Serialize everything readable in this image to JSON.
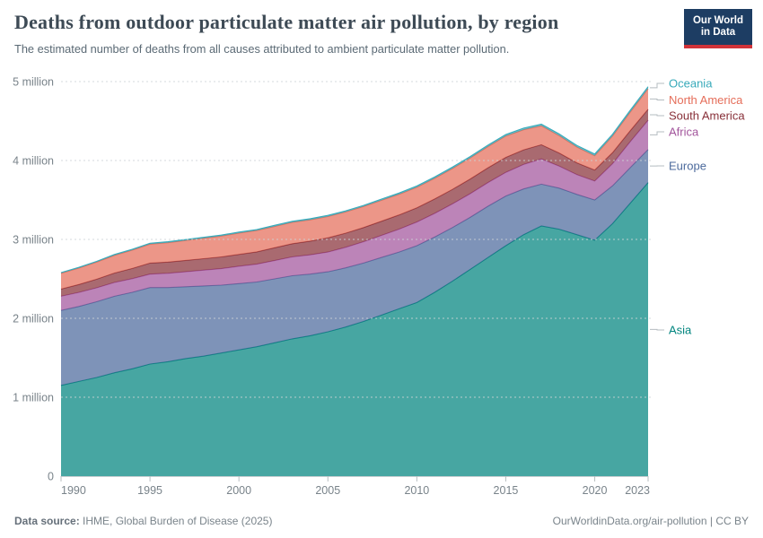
{
  "header": {
    "title": "Deaths from outdoor particulate matter air pollution, by region",
    "subtitle": "The estimated number of deaths from all causes attributed to ambient particulate matter pollution.",
    "logo_line1": "Our World",
    "logo_line2": "in Data",
    "logo_bg": "#1d3d63",
    "logo_accent": "#d13239"
  },
  "footer": {
    "source_label": "Data source:",
    "source_value": " IHME, Global Burden of Disease (2025)",
    "right_text": "OurWorldinData.org/air-pollution | CC BY"
  },
  "chart_data": {
    "type": "area",
    "stacked": true,
    "title": "Deaths from outdoor particulate matter air pollution, by region",
    "unit": "deaths (millions)",
    "ylim": [
      0,
      5
    ],
    "grid": "dashed-horizontal",
    "legend_position": "right-edge-labels",
    "years": [
      1990,
      1991,
      1992,
      1993,
      1994,
      1995,
      1996,
      1997,
      1998,
      1999,
      2000,
      2001,
      2002,
      2003,
      2004,
      2005,
      2006,
      2007,
      2008,
      2009,
      2010,
      2011,
      2012,
      2013,
      2014,
      2015,
      2016,
      2017,
      2018,
      2019,
      2020,
      2021,
      2022,
      2023
    ],
    "xticks": [
      1990,
      1995,
      2000,
      2005,
      2010,
      2015,
      2020,
      2023
    ],
    "yticks": [
      {
        "value": 0,
        "label": "0"
      },
      {
        "value": 1,
        "label": "1 million"
      },
      {
        "value": 2,
        "label": "2 million"
      },
      {
        "value": 3,
        "label": "3 million"
      },
      {
        "value": 4,
        "label": "4 million"
      },
      {
        "value": 5,
        "label": "5 million"
      }
    ],
    "series": [
      {
        "name": "Asia",
        "color": "#00847E",
        "values": [
          1.15,
          1.2,
          1.25,
          1.31,
          1.36,
          1.42,
          1.45,
          1.49,
          1.52,
          1.56,
          1.6,
          1.64,
          1.69,
          1.74,
          1.78,
          1.83,
          1.89,
          1.96,
          2.04,
          2.12,
          2.2,
          2.33,
          2.47,
          2.62,
          2.77,
          2.92,
          3.06,
          3.17,
          3.13,
          3.06,
          2.99,
          3.2,
          3.46,
          3.72
        ]
      },
      {
        "name": "Europe",
        "color": "#4C6A9C",
        "values": [
          0.95,
          0.95,
          0.96,
          0.97,
          0.97,
          0.97,
          0.94,
          0.91,
          0.89,
          0.86,
          0.84,
          0.82,
          0.81,
          0.8,
          0.78,
          0.76,
          0.75,
          0.74,
          0.73,
          0.72,
          0.72,
          0.7,
          0.68,
          0.66,
          0.65,
          0.63,
          0.58,
          0.53,
          0.52,
          0.51,
          0.51,
          0.48,
          0.45,
          0.42
        ]
      },
      {
        "name": "Africa",
        "color": "#A2559C",
        "values": [
          0.18,
          0.178,
          0.176,
          0.174,
          0.172,
          0.17,
          0.18,
          0.19,
          0.2,
          0.21,
          0.22,
          0.226,
          0.232,
          0.238,
          0.244,
          0.25,
          0.26,
          0.27,
          0.28,
          0.29,
          0.3,
          0.3,
          0.3,
          0.3,
          0.3,
          0.3,
          0.31,
          0.32,
          0.28,
          0.25,
          0.24,
          0.28,
          0.33,
          0.37
        ]
      },
      {
        "name": "South America",
        "color": "#883039",
        "values": [
          0.09,
          0.1,
          0.11,
          0.12,
          0.13,
          0.14,
          0.142,
          0.144,
          0.146,
          0.148,
          0.15,
          0.156,
          0.162,
          0.168,
          0.174,
          0.18,
          0.18,
          0.18,
          0.18,
          0.18,
          0.18,
          0.182,
          0.184,
          0.186,
          0.188,
          0.19,
          0.185,
          0.18,
          0.165,
          0.15,
          0.14,
          0.14,
          0.14,
          0.14
        ]
      },
      {
        "name": "North America",
        "color": "#E56E5A",
        "values": [
          0.2,
          0.208,
          0.216,
          0.224,
          0.232,
          0.24,
          0.246,
          0.252,
          0.258,
          0.264,
          0.27,
          0.27,
          0.27,
          0.27,
          0.27,
          0.27,
          0.268,
          0.266,
          0.264,
          0.262,
          0.26,
          0.262,
          0.264,
          0.266,
          0.268,
          0.27,
          0.255,
          0.24,
          0.22,
          0.2,
          0.18,
          0.21,
          0.235,
          0.26
        ]
      },
      {
        "name": "Oceania",
        "color": "#38AABA",
        "values": [
          0.01,
          0.01,
          0.01,
          0.011,
          0.011,
          0.011,
          0.012,
          0.012,
          0.012,
          0.013,
          0.013,
          0.013,
          0.014,
          0.014,
          0.014,
          0.015,
          0.015,
          0.015,
          0.016,
          0.016,
          0.017,
          0.017,
          0.018,
          0.018,
          0.019,
          0.019,
          0.02,
          0.02,
          0.021,
          0.021,
          0.022,
          0.023,
          0.024,
          0.025
        ]
      }
    ]
  }
}
